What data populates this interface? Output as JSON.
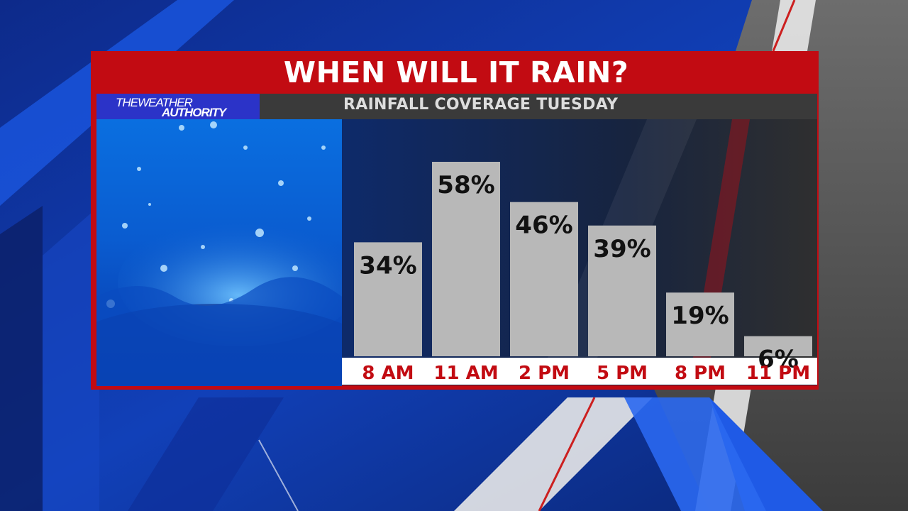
{
  "header": {
    "title": "WHEN WILL IT RAIN?"
  },
  "logo": {
    "line1": "THEWEATHER",
    "line2": "AUTHORITY"
  },
  "subtitle": "RAINFALL COVERAGE TUESDAY",
  "colors": {
    "accent_red": "#c20b12",
    "bar_gray": "#b8b8b8",
    "logo_blue": "#2b33c8",
    "subtitle_bg": "#3a3a3a"
  },
  "chart_data": {
    "type": "bar",
    "title": "RAINFALL COVERAGE TUESDAY",
    "categories": [
      "8 AM",
      "11 AM",
      "2 PM",
      "5 PM",
      "8 PM",
      "11 PM"
    ],
    "values": [
      34,
      58,
      46,
      39,
      19,
      6
    ],
    "value_labels": [
      "34%",
      "58%",
      "46%",
      "39%",
      "19%",
      "6%"
    ],
    "ylim": [
      0,
      58
    ],
    "grid": false,
    "legend": "none"
  }
}
